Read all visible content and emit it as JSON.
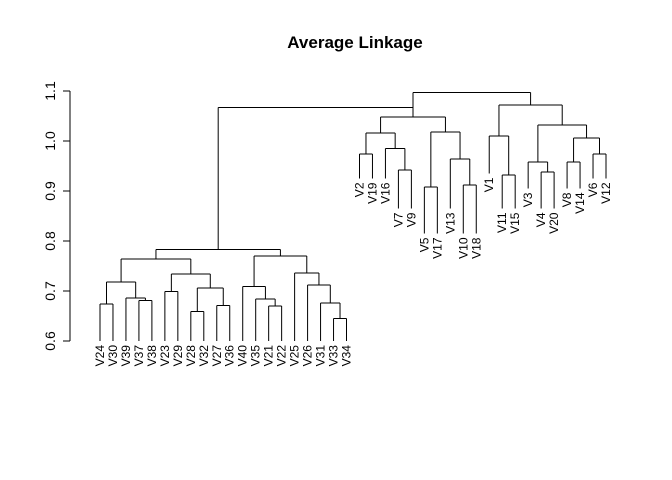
{
  "chart_data": {
    "type": "dendrogram",
    "title": "Average Linkage",
    "xlabel": "",
    "ylabel": "",
    "ylim": [
      0.6,
      1.1
    ],
    "yticks": [
      "0.6",
      "0.7",
      "0.8",
      "0.9",
      "1.0",
      "1.1"
    ],
    "leaves": [
      {
        "label": "V24",
        "h": 0.6
      },
      {
        "label": "V30",
        "h": 0.6
      },
      {
        "label": "V39",
        "h": 0.6
      },
      {
        "label": "V37",
        "h": 0.6
      },
      {
        "label": "V38",
        "h": 0.6
      },
      {
        "label": "V23",
        "h": 0.6
      },
      {
        "label": "V29",
        "h": 0.6
      },
      {
        "label": "V28",
        "h": 0.6
      },
      {
        "label": "V32",
        "h": 0.6
      },
      {
        "label": "V27",
        "h": 0.6
      },
      {
        "label": "V36",
        "h": 0.6
      },
      {
        "label": "V40",
        "h": 0.6
      },
      {
        "label": "V35",
        "h": 0.6
      },
      {
        "label": "V21",
        "h": 0.6
      },
      {
        "label": "V22",
        "h": 0.6
      },
      {
        "label": "V25",
        "h": 0.6
      },
      {
        "label": "V26",
        "h": 0.6
      },
      {
        "label": "V31",
        "h": 0.6
      },
      {
        "label": "V33",
        "h": 0.6
      },
      {
        "label": "V34",
        "h": 0.6
      },
      {
        "label": "V2",
        "h": 0.925
      },
      {
        "label": "V19",
        "h": 0.925
      },
      {
        "label": "V16",
        "h": 0.925
      },
      {
        "label": "V7",
        "h": 0.865
      },
      {
        "label": "V9",
        "h": 0.865
      },
      {
        "label": "V5",
        "h": 0.815
      },
      {
        "label": "V17",
        "h": 0.815
      },
      {
        "label": "V13",
        "h": 0.865
      },
      {
        "label": "V10",
        "h": 0.815
      },
      {
        "label": "V18",
        "h": 0.815
      },
      {
        "label": "V1",
        "h": 0.935
      },
      {
        "label": "V11",
        "h": 0.865
      },
      {
        "label": "V15",
        "h": 0.865
      },
      {
        "label": "V3",
        "h": 0.905
      },
      {
        "label": "V4",
        "h": 0.865
      },
      {
        "label": "V20",
        "h": 0.865
      },
      {
        "label": "V8",
        "h": 0.905
      },
      {
        "label": "V14",
        "h": 0.905
      },
      {
        "label": "V6",
        "h": 0.925
      },
      {
        "label": "V12",
        "h": 0.925
      }
    ],
    "merges": [
      {
        "a": "L3",
        "b": "L4",
        "h": 0.681
      },
      {
        "a": "L2",
        "b": "N0",
        "h": 0.686
      },
      {
        "a": "L18",
        "b": "L19",
        "h": 0.645
      },
      {
        "a": "L17",
        "b": "N2",
        "h": 0.676
      },
      {
        "a": "L13",
        "b": "L14",
        "h": 0.67
      },
      {
        "a": "L12",
        "b": "N4",
        "h": 0.684
      },
      {
        "a": "L11",
        "b": "N5",
        "h": 0.709
      },
      {
        "a": "L0",
        "b": "L1",
        "h": 0.674
      },
      {
        "a": "L5",
        "b": "L6",
        "h": 0.699
      },
      {
        "a": "L7",
        "b": "L8",
        "h": 0.659
      },
      {
        "a": "L9",
        "b": "L10",
        "h": 0.671
      },
      {
        "a": "N9",
        "b": "N10",
        "h": 0.706
      },
      {
        "a": "N8",
        "b": "N11",
        "h": 0.734
      },
      {
        "a": "N7",
        "b": "N1",
        "h": 0.718
      },
      {
        "a": "N13",
        "b": "N12",
        "h": 0.764
      },
      {
        "a": "L16",
        "b": "N3",
        "h": 0.712
      },
      {
        "a": "L15",
        "b": "N15",
        "h": 0.736
      },
      {
        "a": "N6",
        "b": "N16",
        "h": 0.77
      },
      {
        "a": "N14",
        "b": "N17",
        "h": 0.783
      },
      {
        "a": "L0",
        "b": "L0",
        "h": 0.0
      },
      {
        "a": "L20",
        "b": "L21",
        "h": 0.974
      },
      {
        "a": "L23",
        "b": "L24",
        "h": 0.942
      },
      {
        "a": "L22",
        "b": "N21",
        "h": 0.985
      },
      {
        "a": "N20",
        "b": "N22",
        "h": 1.016
      },
      {
        "a": "L25",
        "b": "L26",
        "h": 0.908
      },
      {
        "a": "L28",
        "b": "L29",
        "h": 0.912
      },
      {
        "a": "L27",
        "b": "N25",
        "h": 0.964
      },
      {
        "a": "N24",
        "b": "N26",
        "h": 1.018
      },
      {
        "a": "N23",
        "b": "N27",
        "h": 1.048
      },
      {
        "a": "L31",
        "b": "L32",
        "h": 0.932
      },
      {
        "a": "L30",
        "b": "N29",
        "h": 1.01
      },
      {
        "a": "L34",
        "b": "L35",
        "h": 0.938
      },
      {
        "a": "L33",
        "b": "N31",
        "h": 0.958
      },
      {
        "a": "L36",
        "b": "L37",
        "h": 0.958
      },
      {
        "a": "L38",
        "b": "L39",
        "h": 0.974
      },
      {
        "a": "N33",
        "b": "N34",
        "h": 1.006
      },
      {
        "a": "N32",
        "b": "N35",
        "h": 1.032
      },
      {
        "a": "N30",
        "b": "N36",
        "h": 1.072
      },
      {
        "a": "N28",
        "b": "N37",
        "h": 1.097
      },
      {
        "a": "N18",
        "b": "N28",
        "h": 1.067
      }
    ]
  }
}
